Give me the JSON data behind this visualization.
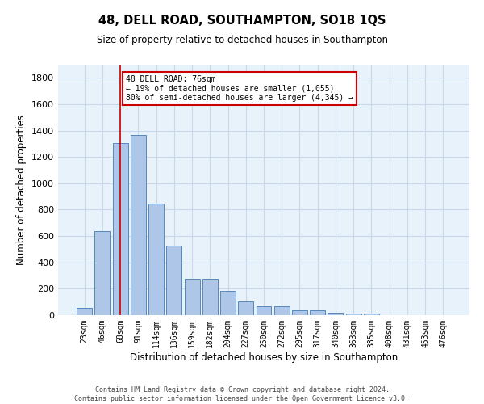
{
  "title": "48, DELL ROAD, SOUTHAMPTON, SO18 1QS",
  "subtitle": "Size of property relative to detached houses in Southampton",
  "xlabel": "Distribution of detached houses by size in Southampton",
  "ylabel": "Number of detached properties",
  "categories": [
    "23sqm",
    "46sqm",
    "68sqm",
    "91sqm",
    "114sqm",
    "136sqm",
    "159sqm",
    "182sqm",
    "204sqm",
    "227sqm",
    "250sqm",
    "272sqm",
    "295sqm",
    "317sqm",
    "340sqm",
    "363sqm",
    "385sqm",
    "408sqm",
    "431sqm",
    "453sqm",
    "476sqm"
  ],
  "values": [
    55,
    640,
    1305,
    1365,
    845,
    530,
    275,
    275,
    185,
    105,
    65,
    65,
    35,
    35,
    20,
    10,
    15,
    0,
    0,
    0,
    0
  ],
  "bar_color": "#aec6e8",
  "bar_edge_color": "#5588bb",
  "grid_color": "#c8d8ea",
  "background_color": "#e8f2fa",
  "vline_x": 2,
  "vline_color": "#cc0000",
  "annotation_text": "48 DELL ROAD: 76sqm\n← 19% of detached houses are smaller (1,055)\n80% of semi-detached houses are larger (4,345) →",
  "annotation_box_color": "#ffffff",
  "annotation_box_edge": "#cc0000",
  "ylim": [
    0,
    1900
  ],
  "yticks": [
    0,
    200,
    400,
    600,
    800,
    1000,
    1200,
    1400,
    1600,
    1800
  ],
  "footer": "Contains HM Land Registry data © Crown copyright and database right 2024.\nContains public sector information licensed under the Open Government Licence v3.0."
}
